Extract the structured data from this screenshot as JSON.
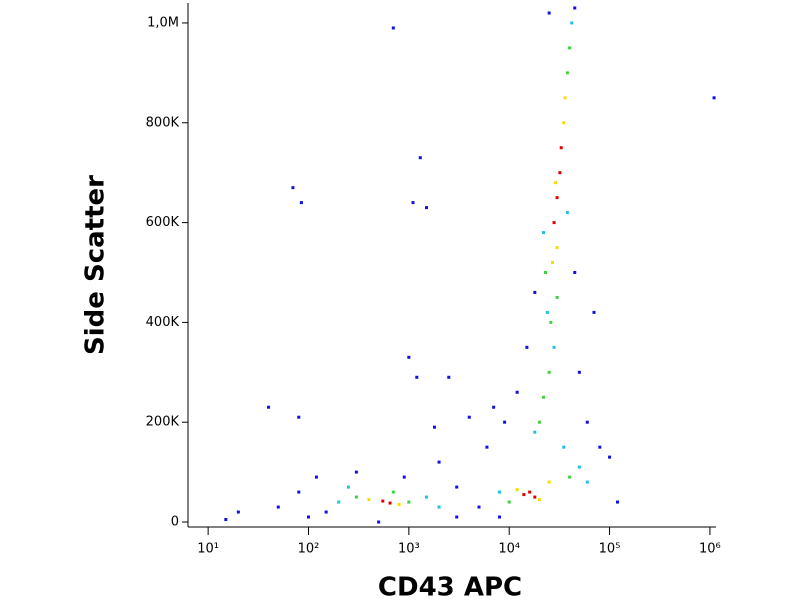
{
  "chart_data": {
    "type": "scatter",
    "x_label": "CD43 APC",
    "y_label": "Side Scatter",
    "xscale": "log",
    "xlim": [
      6.3,
      1150000
    ],
    "ylim": [
      -10000,
      1040000
    ],
    "xticks": [
      {
        "value": 10,
        "label": "10¹"
      },
      {
        "value": 100,
        "label": "10²"
      },
      {
        "value": 1000,
        "label": "10³"
      },
      {
        "value": 10000,
        "label": "10⁴"
      },
      {
        "value": 100000,
        "label": "10⁵"
      },
      {
        "value": 1000000,
        "label": "10⁶"
      }
    ],
    "yticks": [
      0,
      {
        "value": 200000,
        "label": "200K"
      },
      {
        "value": 400000,
        "label": "400K"
      },
      {
        "value": 600000,
        "label": "600K"
      },
      {
        "value": 800000,
        "label": "800K"
      },
      {
        "value": 1000000,
        "label": "1,0M"
      }
    ],
    "series": [
      {
        "color": "#1010e0",
        "x": [
          15,
          20,
          50,
          80,
          100,
          120,
          150,
          70,
          85,
          300,
          500,
          900,
          1000,
          1100,
          1200,
          1300,
          1500,
          2000,
          3000,
          3000,
          5000,
          6000,
          8000,
          9000,
          12000,
          15000,
          18000,
          45000,
          50000,
          60000,
          70000,
          80000,
          100000,
          120000,
          700,
          40,
          80,
          1100000,
          2500,
          1800,
          25000,
          45000,
          7000,
          4000
        ],
        "y": [
          5000,
          20000,
          30000,
          60000,
          10000,
          90000,
          20000,
          670000,
          640000,
          100000,
          0,
          90000,
          330000,
          640000,
          290000,
          730000,
          630000,
          120000,
          70000,
          10000,
          30000,
          150000,
          10000,
          200000,
          260000,
          350000,
          460000,
          500000,
          300000,
          200000,
          420000,
          150000,
          130000,
          40000,
          990000,
          230000,
          210000,
          850000,
          290000,
          190000,
          1020000,
          1030000,
          230000,
          210000
        ]
      },
      {
        "color": "#20c0e0",
        "x": [
          200,
          1500,
          250,
          2000,
          18000,
          28000,
          24000,
          42000,
          50000,
          60000,
          8000,
          35000,
          22000,
          38000
        ],
        "y": [
          40000,
          50000,
          70000,
          30000,
          180000,
          350000,
          420000,
          1000000,
          110000,
          80000,
          60000,
          150000,
          580000,
          620000
        ]
      },
      {
        "color": "#40d040",
        "x": [
          300,
          1000,
          700,
          22000,
          25000,
          20000,
          30000,
          26000,
          38000,
          40000,
          40000,
          10000,
          23000
        ],
        "y": [
          50000,
          40000,
          60000,
          250000,
          300000,
          200000,
          450000,
          400000,
          900000,
          950000,
          90000,
          40000,
          500000
        ]
      },
      {
        "color": "#f0e000",
        "x": [
          400,
          800,
          12000,
          20000,
          25000,
          30000,
          35000,
          27000,
          36000,
          29000
        ],
        "y": [
          45000,
          35000,
          65000,
          45000,
          80000,
          550000,
          800000,
          520000,
          850000,
          680000
        ]
      },
      {
        "color": "#e00000",
        "x": [
          550,
          650,
          14000,
          16000,
          18000,
          30000,
          32000,
          28000,
          33000
        ],
        "y": [
          42000,
          38000,
          55000,
          60000,
          50000,
          650000,
          700000,
          600000,
          750000
        ]
      }
    ]
  }
}
